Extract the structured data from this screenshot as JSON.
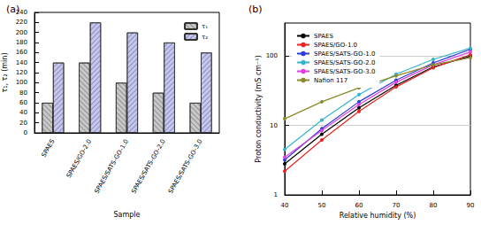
{
  "chart_data": [
    {
      "type": "bar",
      "title": "(a)",
      "xlabel": "Sample",
      "ylabel": "τ₁, τ₂ (min)",
      "categories": [
        "SPAES",
        "SPAES/GO-2.0",
        "SPAES/SATS-GO-1.0",
        "SPAES/SATS-GO-2.0",
        "SPAES/SATS-GO-3.0"
      ],
      "series": [
        {
          "name": "τ₁",
          "color": "#c8c8c8",
          "values": [
            60,
            140,
            100,
            80,
            60
          ]
        },
        {
          "name": "τ₂",
          "color": "#c6c6f2",
          "values": [
            140,
            220,
            200,
            180,
            160
          ]
        }
      ],
      "ylim": [
        0,
        240
      ],
      "yticks": [
        0,
        20,
        40,
        60,
        80,
        100,
        120,
        140,
        160,
        180,
        200,
        220,
        240
      ],
      "legend": "upper right",
      "grid": false
    },
    {
      "type": "line",
      "title": "(b)",
      "xlabel": "Relative humidity (%)",
      "ylabel": "Proton conductivity (mS cm⁻¹)",
      "x": [
        40,
        50,
        60,
        70,
        80,
        90
      ],
      "series": [
        {
          "name": "SPAES",
          "color": "#000000",
          "values": [
            2.8,
            7.5,
            18,
            38,
            70,
            100
          ]
        },
        {
          "name": "SPAES/GO-1.0",
          "color": "#e8251f",
          "values": [
            2.2,
            6.2,
            16,
            36,
            68,
            105
          ]
        },
        {
          "name": "SPAES/SATS-GO-1.0",
          "color": "#2b3cd9",
          "values": [
            3.2,
            9,
            22,
            45,
            80,
            125
          ]
        },
        {
          "name": "SPAES/SATS-GO-2.0",
          "color": "#36b4c8",
          "values": [
            4.5,
            12,
            28,
            55,
            90,
            130
          ]
        },
        {
          "name": "SPAES/SATS-GO-3.0",
          "color": "#e040e0",
          "values": [
            3.5,
            8.5,
            20,
            42,
            75,
            115
          ]
        },
        {
          "name": "Nafion 117",
          "color": "#8a8a2a",
          "values": [
            12.5,
            22,
            35,
            52,
            75,
            95
          ]
        }
      ],
      "xlim": [
        40,
        90
      ],
      "xticks": [
        40,
        50,
        60,
        70,
        80,
        90
      ],
      "ylim": [
        1,
        300
      ],
      "yticks": [
        1,
        10,
        100
      ],
      "log": "y",
      "grid": true,
      "legend": "upper left",
      "marker": "circle"
    }
  ]
}
